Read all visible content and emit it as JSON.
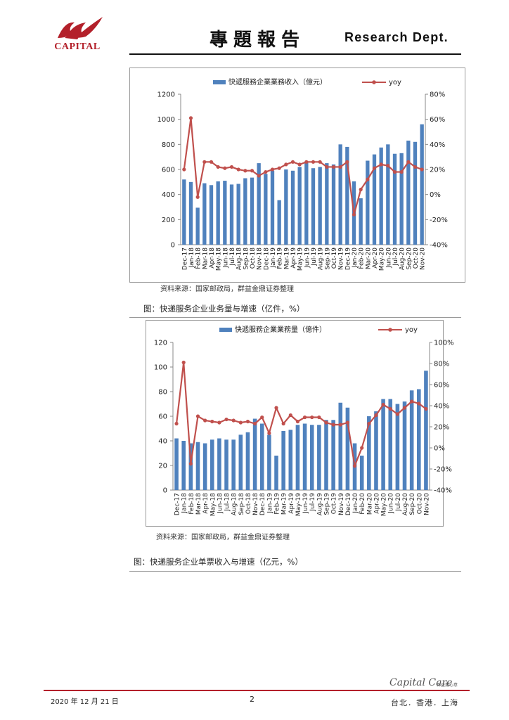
{
  "header": {
    "logo_text": "CAPITAL",
    "title": "專題報告",
    "dept": "Research Dept."
  },
  "colors": {
    "bar": "#4f81bd",
    "line": "#c0504d",
    "brand": "#b3202a"
  },
  "charts": {
    "chart1": {
      "source": "资料来源：国家邮政局，群益金鼎证券整理",
      "caption": "图：快递服务企业业务量与增速（亿件，%）"
    },
    "chart2": {
      "source": "资料来源：国家邮政局，群益金鼎证券整理",
      "caption": "图：快递服务企业单票收入与增速（亿元，%）"
    }
  },
  "chart_data": [
    {
      "type": "bar+line",
      "series": [
        {
          "name": "快遞服務企業業務收入（億元）",
          "kind": "bar",
          "axis": "left",
          "values": [
            520,
            500,
            295,
            490,
            475,
            505,
            510,
            480,
            485,
            530,
            535,
            650,
            565,
            590,
            355,
            600,
            590,
            620,
            655,
            610,
            620,
            650,
            640,
            800,
            780,
            505,
            370,
            670,
            720,
            775,
            800,
            725,
            730,
            830,
            820,
            960
          ]
        },
        {
          "name": "yoy",
          "kind": "line",
          "axis": "right",
          "values": [
            20,
            61,
            -2,
            26,
            26,
            22,
            21,
            22,
            20,
            19,
            19,
            15,
            18,
            20,
            21,
            24,
            26,
            24,
            26,
            26,
            26,
            22,
            22,
            22,
            26,
            -16,
            4,
            12,
            21,
            24,
            23,
            18,
            18,
            26,
            22,
            20
          ]
        }
      ],
      "categories": [
        "Dec-17",
        "Jan-18",
        "Feb-18",
        "Mar-18",
        "Apr-18",
        "May-18",
        "Jun-18",
        "Jul-18",
        "Aug-18",
        "Sep-18",
        "Oct-18",
        "Nov-18",
        "Dec-18",
        "Jan-19",
        "Feb-19",
        "Mar-19",
        "Apr-19",
        "May-19",
        "Jun-19",
        "Jul-19",
        "Aug-19",
        "Sep-19",
        "Oct-19",
        "Nov-19",
        "Dec-19",
        "Jan-20",
        "Feb-20",
        "Mar-20",
        "Apr-20",
        "May-20",
        "Jun-20",
        "Jul-20",
        "Aug-20",
        "Sep-20",
        "Oct-20",
        "Nov-20"
      ],
      "ylim": [
        0,
        1200
      ],
      "yticks": [
        "0",
        "200",
        "400",
        "600",
        "800",
        "1000",
        "1200"
      ],
      "ylim_right": [
        -40,
        80
      ],
      "yticks_right": [
        "-40%",
        "-20%",
        "0%",
        "20%",
        "40%",
        "60%",
        "80%"
      ],
      "legend": "top"
    },
    {
      "type": "bar+line",
      "series": [
        {
          "name": "快遞服務企業業務量（億件）",
          "kind": "bar",
          "axis": "left",
          "values": [
            42,
            40,
            38,
            39,
            38,
            41,
            42,
            41,
            41,
            45,
            47,
            58,
            54,
            45,
            28,
            48,
            49,
            53,
            54,
            53,
            53,
            57,
            57,
            71,
            67,
            38,
            28,
            60,
            64,
            74,
            74,
            70,
            72,
            81,
            82,
            97
          ]
        },
        {
          "name": "yoy",
          "kind": "line",
          "axis": "right",
          "values": [
            23,
            81,
            -15,
            30,
            26,
            25,
            24,
            27,
            26,
            24,
            25,
            23,
            29,
            14,
            38,
            23,
            31,
            25,
            29,
            29,
            29,
            24,
            22,
            22,
            24,
            -17,
            0,
            23,
            31,
            41,
            37,
            32,
            38,
            44,
            42,
            37
          ]
        }
      ],
      "categories": [
        "Dec-17",
        "Jan-18",
        "Feb-18",
        "Mar-18",
        "Apr-18",
        "May-18",
        "Jun-18",
        "Jul-18",
        "Aug-18",
        "Sep-18",
        "Oct-18",
        "Nov-18",
        "Dec-18",
        "Jan-19",
        "Feb-19",
        "Mar-19",
        "Apr-19",
        "May-19",
        "Jun-19",
        "Jul-19",
        "Aug-19",
        "Sep-19",
        "Oct-19",
        "Nov-19",
        "Dec-19",
        "Jan-20",
        "Feb-20",
        "Mar-20",
        "Apr-20",
        "May-20",
        "Jun-20",
        "Jul-20",
        "Aug-20",
        "Sep-20",
        "Oct-20",
        "Nov-20"
      ],
      "ylim": [
        0,
        120
      ],
      "yticks": [
        "0",
        "20",
        "40",
        "60",
        "80",
        "100",
        "120"
      ],
      "ylim_right": [
        -40,
        100
      ],
      "yticks_right": [
        "-40%",
        "-20%",
        "0%",
        "20%",
        "40%",
        "60%",
        "80%",
        "100%"
      ],
      "legend": "top"
    }
  ],
  "footer": {
    "date": "2020 年 12 月 21 日",
    "page": "2",
    "brand": "Capital Care",
    "brand_sub": "群益攜心意",
    "cities": "台北．香港．上海"
  }
}
